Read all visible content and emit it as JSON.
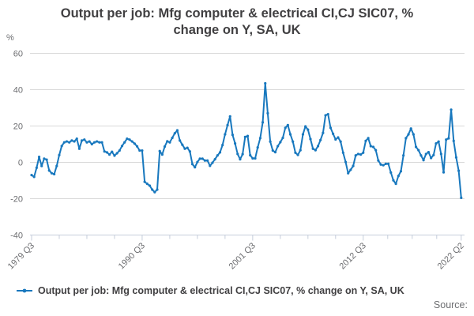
{
  "title": "Output per job: Mfg computer & electrical CI,CJ SIC07, % change on Y, SA, UK",
  "y_axis_unit": "%",
  "legend": {
    "label": "Output per job: Mfg computer & electrical CI,CJ SIC07, % change on Y, SA, UK"
  },
  "source_label": "Source:",
  "colors": {
    "line": "#1878be",
    "grid": "#d9d9d9",
    "axis": "#c6cedb",
    "tick_label": "#6d6e71",
    "title_text": "#414042"
  },
  "chart_data": {
    "type": "line",
    "title": "Output per job: Mfg computer & electrical CI,CJ SIC07, % change on Y, SA, UK",
    "xlabel": "",
    "ylabel": "%",
    "ylim": [
      -40,
      60
    ],
    "grid": "horizontal",
    "legend_position": "bottom",
    "frequency": "quarterly",
    "x_start": "1979 Q3",
    "x_end": "2022 Q2",
    "y_ticks": [
      60,
      40,
      20,
      0,
      -20,
      -40
    ],
    "x_ticks": [
      {
        "label": "1979 Q3",
        "index": 0
      },
      {
        "label": "1990 Q3",
        "index": 44
      },
      {
        "label": "2001 Q3",
        "index": 88
      },
      {
        "label": "2012 Q3",
        "index": 132
      },
      {
        "label": "2022 Q2",
        "index": 171
      }
    ],
    "series": [
      {
        "name": "Output per job: Mfg computer & electrical CI,CJ SIC07, % change on Y, SA, UK",
        "values": [
          -7,
          -8,
          -3,
          3,
          -2,
          2,
          1.5,
          -4.5,
          -6,
          -6.5,
          -2,
          4,
          9,
          11,
          11.5,
          11,
          12,
          11.5,
          13,
          7.5,
          12,
          12.5,
          11,
          11.5,
          10,
          11,
          11.5,
          11,
          11,
          6,
          5.5,
          4.3,
          5.8,
          3.7,
          5,
          6.5,
          9,
          11,
          13,
          12.5,
          11.5,
          10.3,
          8.8,
          6.5,
          6.5,
          -10.7,
          -11.8,
          -12.8,
          -15,
          -16.4,
          -15,
          6.2,
          4.3,
          8.7,
          11.6,
          11,
          13.5,
          16,
          17.6,
          12,
          9.7,
          7.5,
          8,
          6,
          -1,
          -2.7,
          0.2,
          2,
          2,
          1,
          1,
          -1.9,
          -0.2,
          1.7,
          3.8,
          5.5,
          9.5,
          15.4,
          20.5,
          25.3,
          15.1,
          10.4,
          4.6,
          1.7,
          4.5,
          14,
          14.5,
          3.9,
          2.2,
          2.2,
          8.2,
          13.3,
          22,
          43.5,
          27,
          11.4,
          6.5,
          5.6,
          8.9,
          11.1,
          13.5,
          19,
          20.5,
          15.4,
          11.4,
          5.3,
          4.1,
          6.7,
          15.4,
          19.8,
          18,
          12.8,
          7.5,
          6.7,
          8.9,
          12.3,
          16.2,
          25.9,
          26.5,
          19,
          15.7,
          12.6,
          13.7,
          11.4,
          5.3,
          0.2,
          -6,
          -4.1,
          -2,
          3.8,
          4.6,
          4.3,
          5.3,
          11.8,
          13.3,
          8.9,
          8.5,
          6.7,
          1,
          -1.2,
          -1.6,
          -0.8,
          -0.8,
          -5.6,
          -9.9,
          -11.8,
          -7.5,
          -4.9,
          3.8,
          13.3,
          15.4,
          18.6,
          15.4,
          8.5,
          6.7,
          3.8,
          1.2,
          4.6,
          5.6,
          2.4,
          4,
          10.4,
          11.4,
          4.6,
          -5.5,
          12.5,
          13.2,
          29,
          11.8,
          2.7,
          -4.6,
          -19.5
        ]
      }
    ]
  }
}
